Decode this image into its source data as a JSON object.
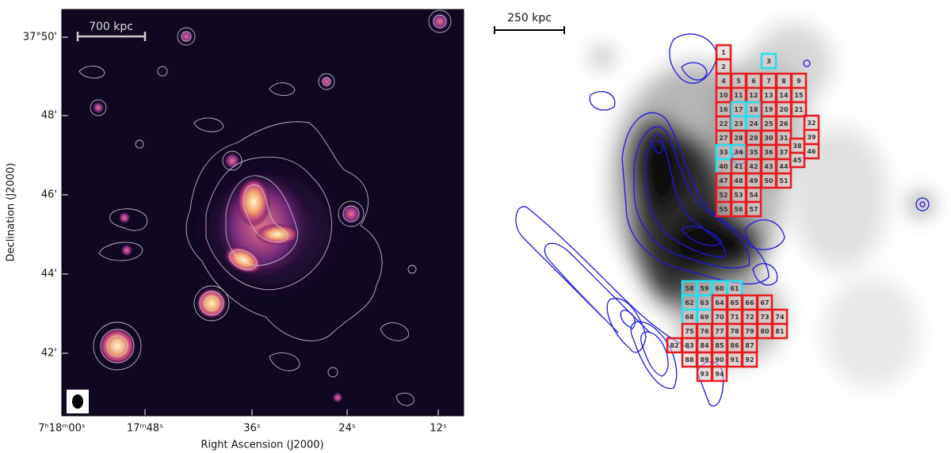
{
  "left_panel": {
    "scale_bar": "700 kpc",
    "y_axis": {
      "label": "Declination (J2000)",
      "ticks": [
        "37°50'",
        "48'",
        "46'",
        "44'",
        "42'"
      ]
    },
    "x_axis": {
      "label": "Right Ascension (J2000)",
      "ticks": [
        "7ʰ18ᵐ00ˢ",
        "17ᵐ48ˢ",
        "36ˢ",
        "24ˢ",
        "12ˢ"
      ]
    }
  },
  "right_panel": {
    "scale_bar": "250 kpc",
    "regions": [
      {
        "label": "1",
        "color": "#e8191f"
      },
      {
        "label": "2",
        "color": "#e8191f"
      },
      {
        "label": "3",
        "color": "#22e0ee"
      },
      {
        "label": "4",
        "color": "#e8191f"
      },
      {
        "label": "5",
        "color": "#e8191f"
      },
      {
        "label": "6",
        "color": "#e8191f"
      },
      {
        "label": "7",
        "color": "#e8191f"
      },
      {
        "label": "8",
        "color": "#e8191f"
      },
      {
        "label": "9",
        "color": "#e8191f"
      },
      {
        "label": "10",
        "color": "#e8191f"
      },
      {
        "label": "11",
        "color": "#e8191f"
      },
      {
        "label": "12",
        "color": "#e8191f"
      },
      {
        "label": "13",
        "color": "#e8191f"
      },
      {
        "label": "14",
        "color": "#e8191f"
      },
      {
        "label": "15",
        "color": "#e8191f"
      },
      {
        "label": "16",
        "color": "#e8191f"
      },
      {
        "label": "17",
        "color": "#22e0ee"
      },
      {
        "label": "18",
        "color": "#22e0ee"
      },
      {
        "label": "19",
        "color": "#e8191f"
      },
      {
        "label": "20",
        "color": "#e8191f"
      },
      {
        "label": "21",
        "color": "#e8191f"
      },
      {
        "label": "22",
        "color": "#e8191f"
      },
      {
        "label": "23",
        "color": "#22e0ee"
      },
      {
        "label": "24",
        "color": "#22e0ee"
      },
      {
        "label": "25",
        "color": "#e8191f"
      },
      {
        "label": "26",
        "color": "#e8191f"
      },
      {
        "label": "27",
        "color": "#e8191f"
      },
      {
        "label": "28",
        "color": "#e8191f"
      },
      {
        "label": "29",
        "color": "#e8191f"
      },
      {
        "label": "30",
        "color": "#e8191f"
      },
      {
        "label": "31",
        "color": "#e8191f"
      },
      {
        "label": "32",
        "color": "#e8191f"
      },
      {
        "label": "33",
        "color": "#22e0ee"
      },
      {
        "label": "34",
        "color": "#22e0ee"
      },
      {
        "label": "35",
        "color": "#e8191f"
      },
      {
        "label": "36",
        "color": "#e8191f"
      },
      {
        "label": "37",
        "color": "#e8191f"
      },
      {
        "label": "38",
        "color": "#e8191f"
      },
      {
        "label": "39",
        "color": "#e8191f"
      },
      {
        "label": "40",
        "color": "#22e0ee"
      },
      {
        "label": "41",
        "color": "#e8191f"
      },
      {
        "label": "42",
        "color": "#e8191f"
      },
      {
        "label": "43",
        "color": "#e8191f"
      },
      {
        "label": "44",
        "color": "#e8191f"
      },
      {
        "label": "45",
        "color": "#e8191f"
      },
      {
        "label": "46",
        "color": "#e8191f"
      },
      {
        "label": "47",
        "color": "#e8191f"
      },
      {
        "label": "48",
        "color": "#e8191f"
      },
      {
        "label": "49",
        "color": "#e8191f"
      },
      {
        "label": "50",
        "color": "#e8191f"
      },
      {
        "label": "51",
        "color": "#e8191f"
      },
      {
        "label": "52",
        "color": "#e8191f"
      },
      {
        "label": "53",
        "color": "#e8191f"
      },
      {
        "label": "54",
        "color": "#e8191f"
      },
      {
        "label": "55",
        "color": "#e8191f"
      },
      {
        "label": "56",
        "color": "#e8191f"
      },
      {
        "label": "57",
        "color": "#e8191f"
      },
      {
        "label": "58",
        "color": "#22e0ee"
      },
      {
        "label": "59",
        "color": "#22e0ee"
      },
      {
        "label": "60",
        "color": "#22e0ee"
      },
      {
        "label": "61",
        "color": "#22e0ee"
      },
      {
        "label": "62",
        "color": "#22e0ee"
      },
      {
        "label": "63",
        "color": "#22e0ee"
      },
      {
        "label": "64",
        "color": "#e8191f"
      },
      {
        "label": "65",
        "color": "#e8191f"
      },
      {
        "label": "66",
        "color": "#e8191f"
      },
      {
        "label": "67",
        "color": "#e8191f"
      },
      {
        "label": "68",
        "color": "#22e0ee"
      },
      {
        "label": "69",
        "color": "#22e0ee"
      },
      {
        "label": "70",
        "color": "#e8191f"
      },
      {
        "label": "71",
        "color": "#e8191f"
      },
      {
        "label": "72",
        "color": "#e8191f"
      },
      {
        "label": "73",
        "color": "#e8191f"
      },
      {
        "label": "74",
        "color": "#e8191f"
      },
      {
        "label": "75",
        "color": "#e8191f"
      },
      {
        "label": "76",
        "color": "#e8191f"
      },
      {
        "label": "77",
        "color": "#e8191f"
      },
      {
        "label": "78",
        "color": "#e8191f"
      },
      {
        "label": "79",
        "color": "#e8191f"
      },
      {
        "label": "80",
        "color": "#e8191f"
      },
      {
        "label": "81",
        "color": "#e8191f"
      },
      {
        "label": "82",
        "color": "#e8191f"
      },
      {
        "label": "83",
        "color": "#e8191f"
      },
      {
        "label": "84",
        "color": "#e8191f"
      },
      {
        "label": "85",
        "color": "#e8191f"
      },
      {
        "label": "86",
        "color": "#e8191f"
      },
      {
        "label": "87",
        "color": "#e8191f"
      },
      {
        "label": "88",
        "color": "#e8191f"
      },
      {
        "label": "89",
        "color": "#e8191f"
      },
      {
        "label": "90",
        "color": "#e8191f"
      },
      {
        "label": "91",
        "color": "#e8191f"
      },
      {
        "label": "92",
        "color": "#e8191f"
      },
      {
        "label": "93",
        "color": "#e8191f"
      },
      {
        "label": "94",
        "color": "#e8191f"
      }
    ]
  }
}
